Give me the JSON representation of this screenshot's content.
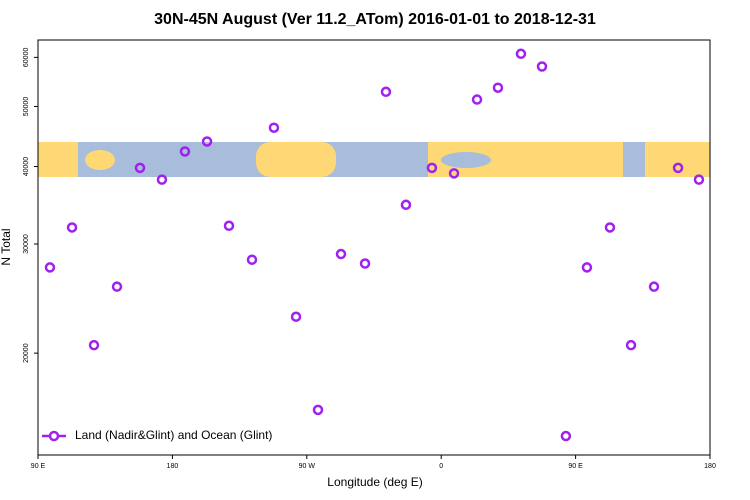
{
  "chart_data": {
    "type": "scatter",
    "title": "30N-45N August (Ver 11.2_ATom)   2016-01-01 to 2018-12-31",
    "x_label": "Longitude (deg E)",
    "y_label": "N Total",
    "xlim": [
      90,
      540
    ],
    "ylim": [
      13700,
      64000
    ],
    "y_scale": "log",
    "xticks": [
      {
        "value": 90,
        "label": "90 E"
      },
      180,
      {
        "value": 270,
        "label": "90 W"
      },
      {
        "value": 360,
        "label": "0"
      },
      {
        "value": 450,
        "label": "90 E"
      },
      {
        "value": 540,
        "label": "180"
      }
    ],
    "yticks": [
      20000,
      30000,
      40000,
      50000,
      60000
    ],
    "legend": "bottom-left",
    "series": [
      {
        "name": "Land (Nadir&Glint) and Ocean (Glint)",
        "color": "#a020f0",
        "x": [
          98.0,
          112.8,
          127.5,
          142.9,
          158.3,
          173.0,
          188.4,
          203.2,
          217.9,
          233.3,
          248.0,
          262.8,
          277.5,
          292.9,
          309.0,
          323.0,
          336.4,
          353.8,
          368.6,
          384.0,
          398.0,
          413.4,
          427.5,
          443.5,
          457.6,
          473.0,
          487.1,
          502.5,
          518.6,
          532.6
        ],
        "values": [
          27500,
          31900,
          20600,
          25600,
          39800,
          38100,
          42300,
          43900,
          32100,
          28300,
          46200,
          22900,
          16200,
          28900,
          27900,
          52800,
          34700,
          39800,
          39000,
          51300,
          53600,
          60800,
          58000,
          14700,
          27500,
          31900,
          20600,
          25600,
          39800,
          38100
        ]
      }
    ]
  }
}
